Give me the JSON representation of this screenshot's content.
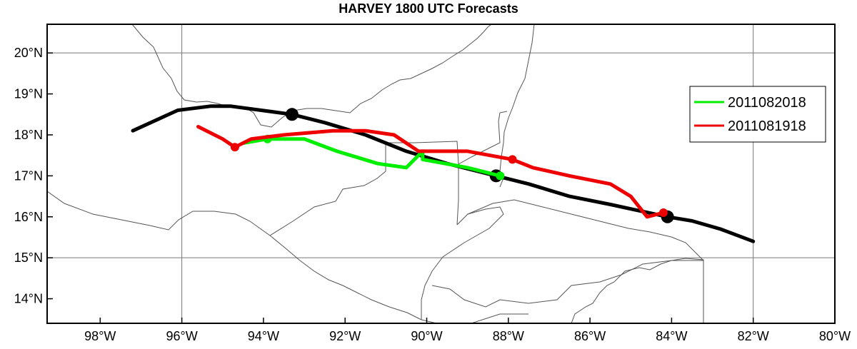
{
  "title": "HARVEY 1800 UTC Forecasts",
  "map": {
    "lon_range": [
      -99.3,
      -80
    ],
    "lat_range": [
      13.4,
      20.7
    ],
    "grid_lons": [
      -96,
      -82
    ],
    "grid_lats": [
      20,
      15
    ],
    "x_ticks": [
      {
        "lon": -98,
        "label": "98°W"
      },
      {
        "lon": -96,
        "label": "96°W"
      },
      {
        "lon": -94,
        "label": "94°W"
      },
      {
        "lon": -92,
        "label": "92°W"
      },
      {
        "lon": -90,
        "label": "90°W"
      },
      {
        "lon": -88,
        "label": "88°W"
      },
      {
        "lon": -86,
        "label": "86°W"
      },
      {
        "lon": -84,
        "label": "84°W"
      },
      {
        "lon": -82,
        "label": "82°W"
      },
      {
        "lon": -80,
        "label": "80°W"
      }
    ],
    "y_ticks": [
      {
        "lat": 20,
        "label": "20°N"
      },
      {
        "lat": 19,
        "label": "19°N"
      },
      {
        "lat": 18,
        "label": "18°N"
      },
      {
        "lat": 17,
        "label": "17°N"
      },
      {
        "lat": 16,
        "label": "16°N"
      },
      {
        "lat": 15,
        "label": "15°N"
      },
      {
        "lat": 14,
        "label": "14°N"
      }
    ]
  },
  "chart_data": {
    "type": "line",
    "title": "HARVEY 1800 UTC Forecasts",
    "legend_position": "top-right",
    "legend": [
      {
        "name": "2011082018",
        "color": "#00ee00"
      },
      {
        "name": "2011081918",
        "color": "#ee0000"
      }
    ],
    "tracks": [
      {
        "color": "#000000",
        "points": [
          [
            -97.2,
            18.1
          ],
          [
            -96.1,
            18.6
          ],
          [
            -95.3,
            18.7
          ],
          [
            -94.8,
            18.7
          ],
          [
            -93.3,
            18.5
          ],
          [
            -92.5,
            18.3
          ],
          [
            -91.5,
            18.0
          ],
          [
            -90.5,
            17.6
          ],
          [
            -89.5,
            17.3
          ],
          [
            -88.3,
            17.0
          ],
          [
            -87.5,
            16.8
          ],
          [
            -86.5,
            16.5
          ],
          [
            -85.5,
            16.3
          ],
          [
            -84.1,
            16.0
          ],
          [
            -83.5,
            15.9
          ],
          [
            -82.8,
            15.7
          ],
          [
            -82.0,
            15.4
          ]
        ],
        "markers": [
          [
            -93.3,
            18.5
          ],
          [
            -88.3,
            17.0
          ],
          [
            -84.1,
            16.0
          ]
        ]
      },
      {
        "color": "#00ee00",
        "points": [
          [
            -94.5,
            17.8
          ],
          [
            -93.9,
            17.9
          ],
          [
            -93.0,
            17.9
          ],
          [
            -92.2,
            17.6
          ],
          [
            -91.2,
            17.3
          ],
          [
            -90.5,
            17.2
          ],
          [
            -90.1,
            17.6
          ],
          [
            -90.1,
            17.4
          ],
          [
            -89.0,
            17.2
          ],
          [
            -88.2,
            17.0
          ]
        ],
        "markers": [
          [
            -93.9,
            17.9
          ],
          [
            -88.2,
            17.0
          ]
        ]
      },
      {
        "color": "#ee0000",
        "points": [
          [
            -95.6,
            18.2
          ],
          [
            -95.0,
            17.9
          ],
          [
            -94.7,
            17.7
          ],
          [
            -94.3,
            17.9
          ],
          [
            -93.5,
            18.0
          ],
          [
            -92.3,
            18.1
          ],
          [
            -91.5,
            18.1
          ],
          [
            -90.8,
            18.0
          ],
          [
            -90.2,
            17.6
          ],
          [
            -89.0,
            17.6
          ],
          [
            -87.9,
            17.4
          ],
          [
            -87.4,
            17.2
          ],
          [
            -86.5,
            17.0
          ],
          [
            -85.5,
            16.8
          ],
          [
            -85.0,
            16.5
          ],
          [
            -84.6,
            16.0
          ],
          [
            -84.2,
            16.1
          ]
        ],
        "markers": [
          [
            -94.7,
            17.7
          ],
          [
            -87.9,
            17.4
          ],
          [
            -84.2,
            16.1
          ]
        ]
      }
    ]
  }
}
